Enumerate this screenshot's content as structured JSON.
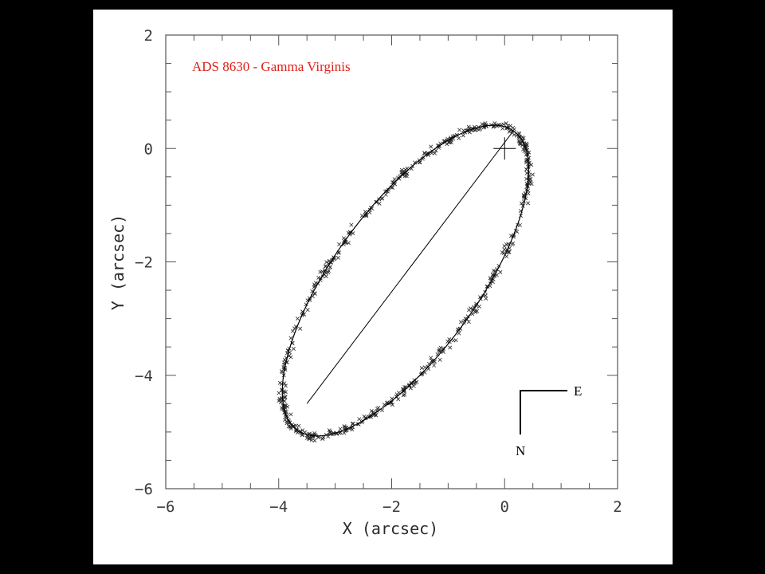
{
  "chart_data": {
    "type": "scatter",
    "title": "ADS 8630 - Gamma Virginis",
    "xlabel": "X (arcsec)",
    "ylabel": "Y (arcsec)",
    "xlim": [
      -6,
      2
    ],
    "ylim": [
      -6,
      2
    ],
    "xticks": [
      {
        "value": -6,
        "label": "−6"
      },
      {
        "value": -4,
        "label": "−4"
      },
      {
        "value": -2,
        "label": "−2"
      },
      {
        "value": 0,
        "label": "0"
      },
      {
        "value": 2,
        "label": "2"
      }
    ],
    "yticks": [
      {
        "value": 2,
        "label": "2"
      },
      {
        "value": 0,
        "label": "0"
      },
      {
        "value": -2,
        "label": "−2"
      },
      {
        "value": -4,
        "label": "−4"
      },
      {
        "value": -6,
        "label": "−6"
      }
    ],
    "grid": false,
    "primary_star": {
      "x": 0,
      "y": 0
    },
    "orbit_ellipse": {
      "center": {
        "x": -1.755,
        "y": -2.33
      },
      "semi_major_axis": 3.26,
      "semi_minor_axis": 1.28,
      "major_axis_angle_deg": 53.9
    },
    "line_of_apsides": {
      "from": {
        "x": 0.155,
        "y": 0.31
      },
      "to": {
        "x": -3.5,
        "y": -4.5
      }
    },
    "observations": {
      "marker": "x",
      "count": 600,
      "scatter_arcsec": 0.06
    },
    "compass": {
      "east_label": "E",
      "north_label": "N"
    },
    "colors": {
      "figure_background": "#000000",
      "plot_background": "#ffffff",
      "title": "#e0201a",
      "orbit": "#000000",
      "markers": "#2a2a2a",
      "axes": "#555555"
    }
  }
}
